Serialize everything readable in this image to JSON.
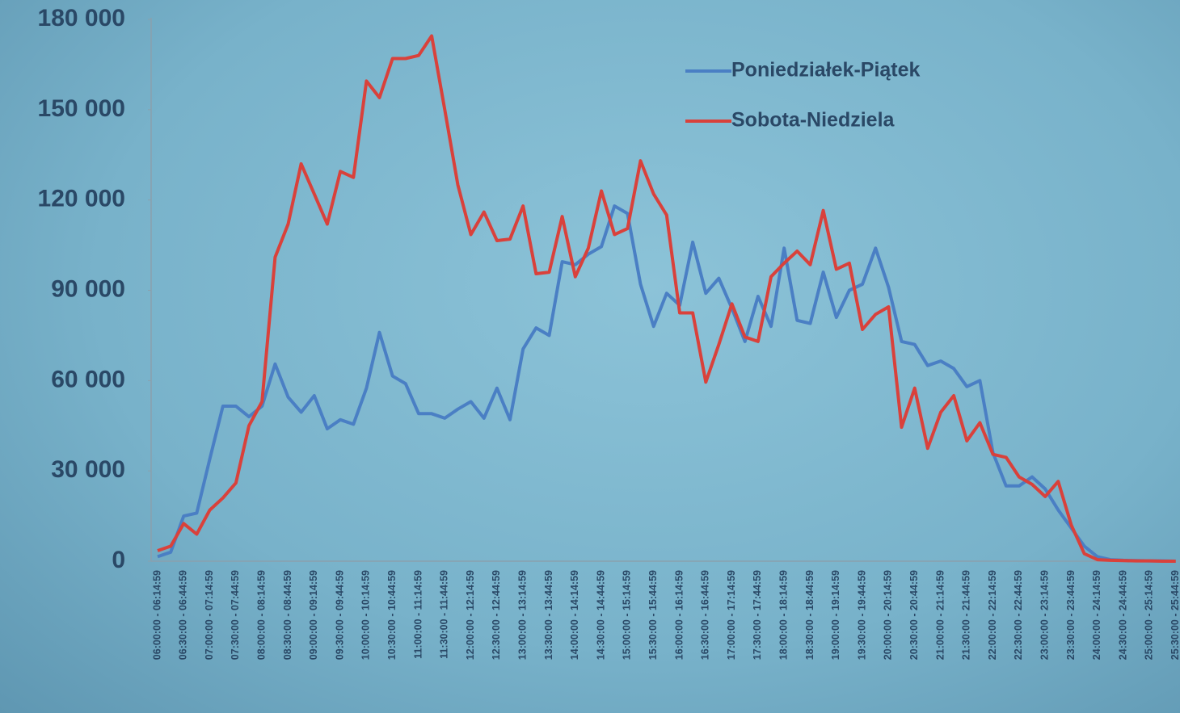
{
  "chart_data": {
    "type": "line",
    "categories": [
      "06:00:00 - 06:14:59",
      null,
      "06:30:00 - 06:44:59",
      null,
      "07:00:00 - 07:14:59",
      null,
      "07:30:00 - 07:44:59",
      null,
      "08:00:00 - 08:14:59",
      null,
      "08:30:00 - 08:44:59",
      null,
      "09:00:00 - 09:14:59",
      null,
      "09:30:00 - 09:44:59",
      null,
      "10:00:00 - 10:14:59",
      null,
      "10:30:00 - 10:44:59",
      null,
      "11:00:00 - 11:14:59",
      null,
      "11:30:00 - 11:44:59",
      null,
      "12:00:00 - 12:14:59",
      null,
      "12:30:00 - 12:44:59",
      null,
      "13:00:00 - 13:14:59",
      null,
      "13:30:00 - 13:44:59",
      null,
      "14:00:00 - 14:14:59",
      null,
      "14:30:00 - 14:44:59",
      null,
      "15:00:00 - 15:14:59",
      null,
      "15:30:00 - 15:44:59",
      null,
      "16:00:00 - 16:14:59",
      null,
      "16:30:00 - 16:44:59",
      null,
      "17:00:00 - 17:14:59",
      null,
      "17:30:00 - 17:44:59",
      null,
      "18:00:00 - 18:14:59",
      null,
      "18:30:00 - 18:44:59",
      null,
      "19:00:00 - 19:14:59",
      null,
      "19:30:00 - 19:44:59",
      null,
      "20:00:00 - 20:14:59",
      null,
      "20:30:00 - 20:44:59",
      null,
      "21:00:00 - 21:14:59",
      null,
      "21:30:00 - 21:44:59",
      null,
      "22:00:00 - 22:14:59",
      null,
      "22:30:00 - 22:44:59",
      null,
      "23:00:00 - 23:14:59",
      null,
      "23:30:00 - 23:44:59",
      null,
      "24:00:00 - 24:14:59",
      null,
      "24:30:00 - 24:44:59",
      null,
      "25:00:00 - 25:14:59",
      null,
      "25:30:00 - 25:44:59"
    ],
    "series": [
      {
        "name": "Poniedziałek-Piątek",
        "color": "#4a7fc4",
        "values": [
          1500,
          3000,
          15000,
          16000,
          34000,
          51500,
          51500,
          48000,
          51500,
          65500,
          54500,
          49500,
          55000,
          44000,
          47000,
          45500,
          57500,
          76000,
          61500,
          59000,
          49000,
          49000,
          47500,
          50500,
          53000,
          47500,
          57500,
          47000,
          70500,
          77500,
          75000,
          99500,
          98500,
          102000,
          104500,
          118000,
          115500,
          92000,
          78000,
          89000,
          85000,
          106000,
          89000,
          94000,
          84000,
          73000,
          88000,
          78000,
          104000,
          80000,
          79000,
          96000,
          81000,
          90000,
          92000,
          104000,
          91000,
          73000,
          72000,
          65000,
          66500,
          64000,
          58000,
          60000,
          36000,
          25000,
          25000,
          28000,
          24000,
          17000,
          11000,
          5000,
          1500,
          500,
          300,
          200,
          100,
          100,
          0
        ]
      },
      {
        "name": "Sobota-Niedziela",
        "color": "#d9413b",
        "values": [
          3500,
          5000,
          12500,
          9000,
          17000,
          21000,
          26000,
          45000,
          53000,
          101000,
          112000,
          132000,
          122000,
          112000,
          129500,
          127500,
          159500,
          154000,
          167000,
          167000,
          168000,
          174500,
          150000,
          125000,
          108500,
          116000,
          106500,
          107000,
          118000,
          95500,
          96000,
          114500,
          94500,
          104000,
          123000,
          108500,
          110500,
          133000,
          122000,
          115000,
          82500,
          82500,
          59500,
          72000,
          85500,
          74500,
          73000,
          94500,
          99000,
          103000,
          98500,
          116500,
          97000,
          99000,
          77000,
          82000,
          84500,
          44500,
          57500,
          37500,
          49500,
          55000,
          40000,
          46000,
          35500,
          34500,
          28000,
          25500,
          21500,
          26500,
          12000,
          2500,
          500,
          300,
          200,
          100,
          100,
          0,
          0
        ]
      }
    ],
    "ylim": [
      0,
      180000
    ],
    "yticks": [
      0,
      {
        "value": 30000,
        "label": "30 000"
      },
      {
        "value": 60000,
        "label": "60 000"
      },
      {
        "value": 90000,
        "label": "90 000"
      },
      {
        "value": 120000,
        "label": "120 000"
      },
      {
        "value": 150000,
        "label": "150 000"
      },
      {
        "value": 180000,
        "label": "180 000"
      }
    ],
    "grid": false,
    "legend": "top-right"
  }
}
